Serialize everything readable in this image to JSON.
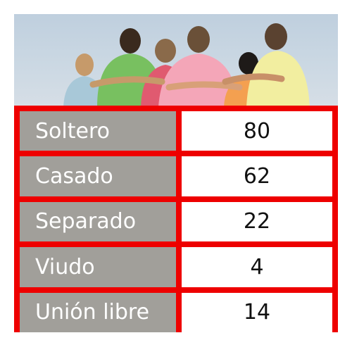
{
  "photo": {
    "subject": "group-of-friends-from-behind"
  },
  "colors": {
    "table_border": "#ee0000",
    "label_bg": "#a19f9a",
    "value_bg": "#ffffff",
    "label_text": "#ffffff",
    "value_text": "#111111"
  },
  "table": {
    "rows": [
      {
        "label": "Soltero",
        "value": "80"
      },
      {
        "label": "Casado",
        "value": "62"
      },
      {
        "label": "Separado",
        "value": "22"
      },
      {
        "label": "Viudo",
        "value": "4"
      },
      {
        "label": "Unión libre",
        "value": "14"
      }
    ]
  }
}
